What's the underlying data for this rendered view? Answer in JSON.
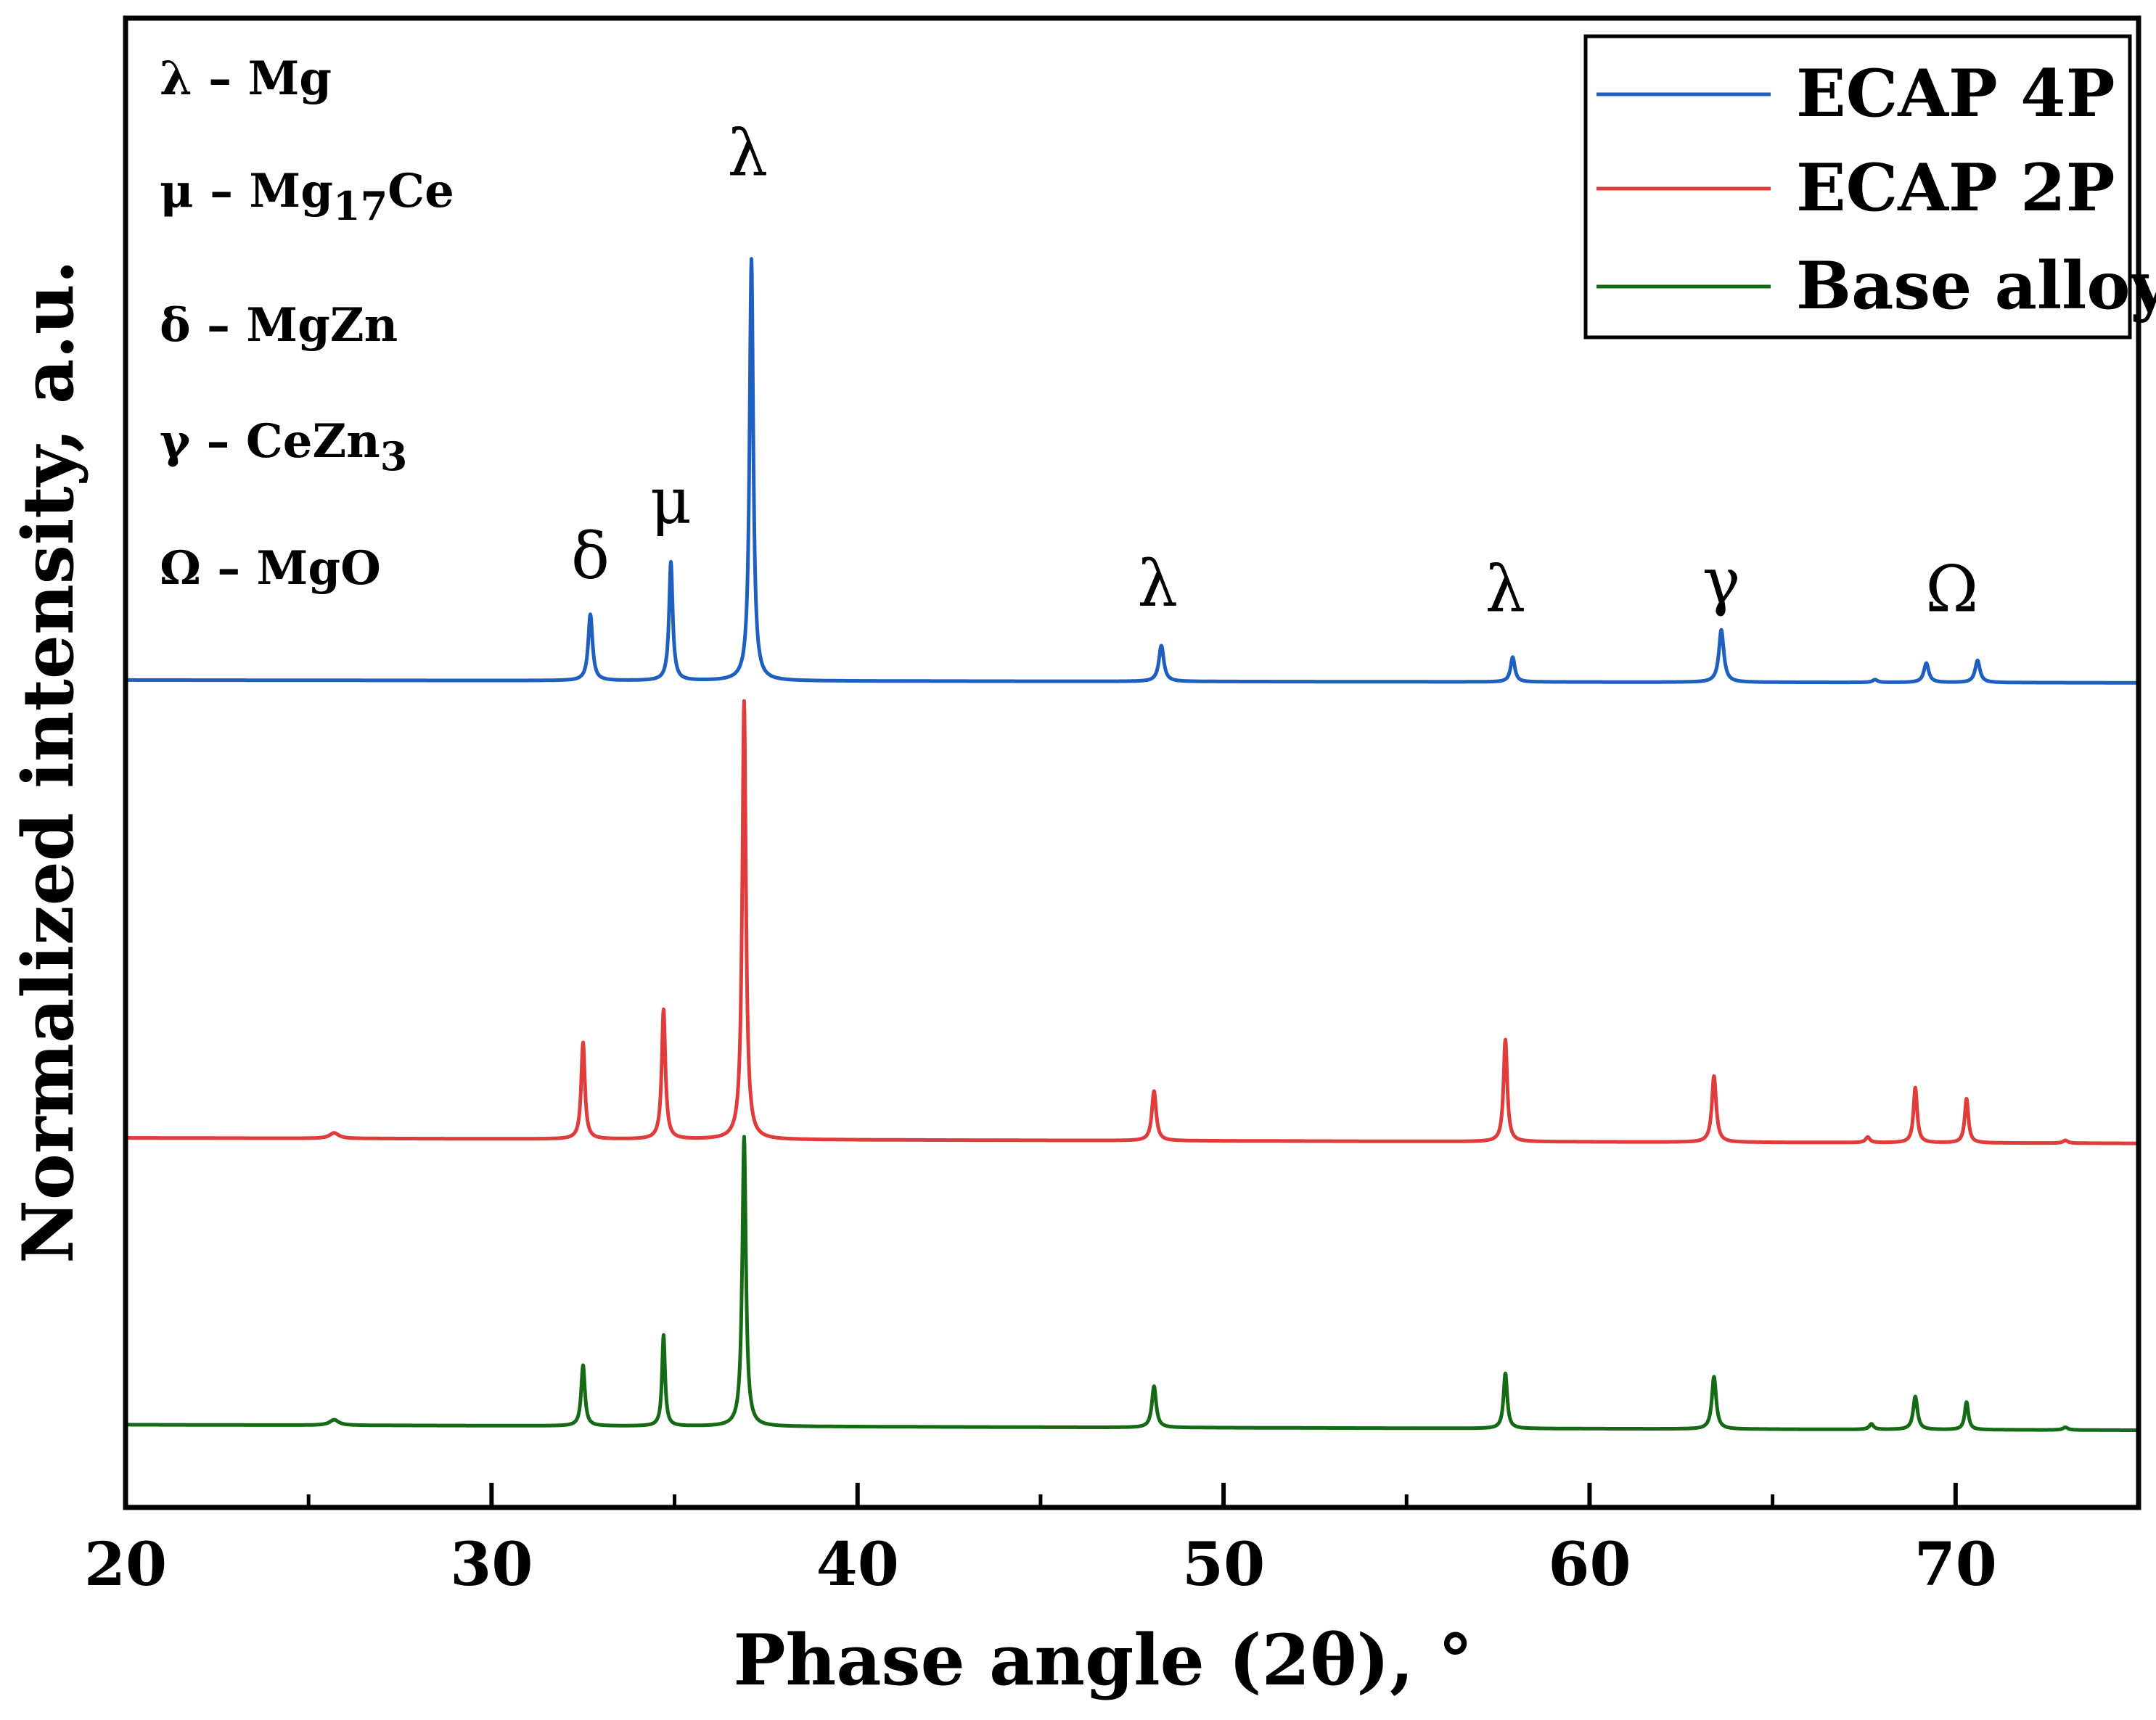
{
  "chart_data": {
    "type": "line",
    "title": "",
    "xlabel": "Phase angle (2θ), °",
    "ylabel": "Normalized intensity, a.u.",
    "xlim": [
      20,
      75
    ],
    "ylim": [
      0,
      5.4
    ],
    "grid": false,
    "xticks": [
      20,
      30,
      40,
      50,
      60,
      70
    ],
    "xtick_labels": [
      "20",
      "30",
      "40",
      "50",
      "60",
      "70"
    ],
    "minor_xticks": [
      25,
      35,
      45,
      55,
      65,
      75
    ],
    "legend": {
      "placement": "top-right",
      "entries": [
        "ECAP 4P",
        "ECAP 2P",
        "Base alloy"
      ]
    },
    "phase_key": [
      {
        "symbol": "λ",
        "dash": "–",
        "phase": "Mg",
        "sub": "",
        "post": ""
      },
      {
        "symbol": "μ",
        "dash": "–",
        "phase": "Mg",
        "sub": "17",
        "post": "Ce"
      },
      {
        "symbol": "δ",
        "dash": "–",
        "phase": "MgZn",
        "sub": "",
        "post": ""
      },
      {
        "symbol": "γ",
        "dash": "–",
        "phase": "CeZn",
        "sub": "3",
        "post": ""
      },
      {
        "symbol": "Ω",
        "dash": "–",
        "phase": "MgO",
        "sub": "",
        "post": ""
      }
    ],
    "peak_labels": [
      {
        "symbol": "δ",
        "x": 32.7,
        "y": 3.37
      },
      {
        "symbol": "μ",
        "x": 34.9,
        "y": 3.57
      },
      {
        "symbol": "λ",
        "x": 37.0,
        "y": 4.83
      },
      {
        "symbol": "λ",
        "x": 48.2,
        "y": 3.27
      },
      {
        "symbol": "λ",
        "x": 57.7,
        "y": 3.25
      },
      {
        "symbol": "γ",
        "x": 63.6,
        "y": 3.28
      },
      {
        "symbol": "Ω",
        "x": 69.9,
        "y": 3.25
      }
    ],
    "series": [
      {
        "name": "ECAP 4P",
        "color": "#1f5fbf",
        "baseline": [
          3.0,
          2.99
        ],
        "peaks": [
          {
            "x": 32.7,
            "h": 0.24,
            "w": 0.07
          },
          {
            "x": 34.9,
            "h": 0.43,
            "w": 0.06
          },
          {
            "x": 37.1,
            "h": 1.53,
            "w": 0.06
          },
          {
            "x": 48.3,
            "h": 0.13,
            "w": 0.08
          },
          {
            "x": 57.9,
            "h": 0.09,
            "w": 0.07
          },
          {
            "x": 63.6,
            "h": 0.19,
            "w": 0.08
          },
          {
            "x": 67.8,
            "h": 0.01,
            "w": 0.08
          },
          {
            "x": 69.2,
            "h": 0.07,
            "w": 0.08
          },
          {
            "x": 70.6,
            "h": 0.08,
            "w": 0.08
          }
        ]
      },
      {
        "name": "ECAP 2P",
        "color": "#e03c3c",
        "baseline": [
          1.34,
          1.32
        ],
        "peaks": [
          {
            "x": 25.7,
            "h": 0.02,
            "w": 0.15
          },
          {
            "x": 32.5,
            "h": 0.35,
            "w": 0.06
          },
          {
            "x": 34.7,
            "h": 0.47,
            "w": 0.06
          },
          {
            "x": 36.9,
            "h": 1.59,
            "w": 0.06
          },
          {
            "x": 48.1,
            "h": 0.18,
            "w": 0.07
          },
          {
            "x": 57.7,
            "h": 0.37,
            "w": 0.06
          },
          {
            "x": 63.4,
            "h": 0.24,
            "w": 0.07
          },
          {
            "x": 67.6,
            "h": 0.02,
            "w": 0.07
          },
          {
            "x": 68.9,
            "h": 0.2,
            "w": 0.06
          },
          {
            "x": 70.3,
            "h": 0.16,
            "w": 0.06
          },
          {
            "x": 73.0,
            "h": 0.01,
            "w": 0.08
          }
        ]
      },
      {
        "name": "Base alloy",
        "color": "#156b15",
        "baseline": [
          0.3,
          0.28
        ],
        "peaks": [
          {
            "x": 25.7,
            "h": 0.02,
            "w": 0.15
          },
          {
            "x": 32.5,
            "h": 0.22,
            "w": 0.06
          },
          {
            "x": 34.7,
            "h": 0.33,
            "w": 0.05
          },
          {
            "x": 36.9,
            "h": 1.05,
            "w": 0.06
          },
          {
            "x": 48.1,
            "h": 0.15,
            "w": 0.07
          },
          {
            "x": 57.7,
            "h": 0.2,
            "w": 0.06
          },
          {
            "x": 63.4,
            "h": 0.19,
            "w": 0.07
          },
          {
            "x": 67.7,
            "h": 0.02,
            "w": 0.07
          },
          {
            "x": 68.9,
            "h": 0.12,
            "w": 0.07
          },
          {
            "x": 70.3,
            "h": 0.1,
            "w": 0.06
          },
          {
            "x": 73.0,
            "h": 0.01,
            "w": 0.08
          }
        ]
      }
    ]
  }
}
